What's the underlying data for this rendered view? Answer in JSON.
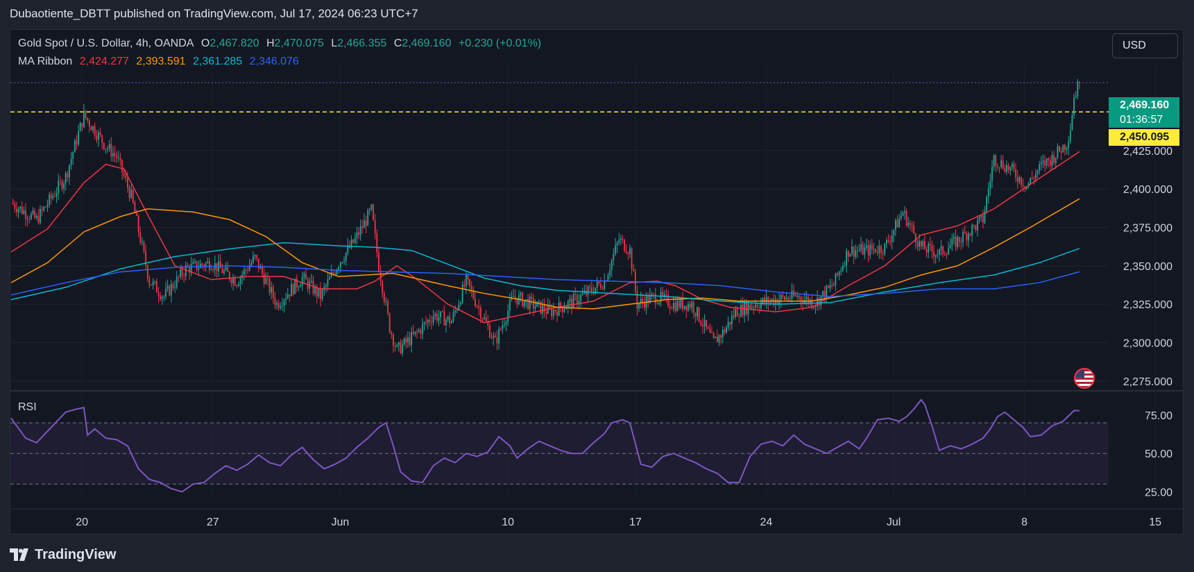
{
  "header": {
    "publish_text": "Dubaotiente_DBTT published on TradingView.com, Jul 17, 2024 06:23 UTC+7"
  },
  "legend": {
    "symbol": "Gold Spot / U.S. Dollar, 4h, OANDA",
    "o_label": "O",
    "o_value": "2,467.820",
    "h_label": "H",
    "h_value": "2,470.075",
    "l_label": "L",
    "l_value": "2,466.355",
    "c_label": "C",
    "c_value": "2,469.160",
    "change": "+0.230 (+0.01%)",
    "ma_label": "MA Ribbon",
    "ma_values": [
      "2,424.277",
      "2,393.591",
      "2,361.285",
      "2,346.076"
    ]
  },
  "currency_button": "USD",
  "price_tags": {
    "last_price": "2,469.160",
    "countdown": "01:36:57",
    "level": "2,450.095"
  },
  "rsi_label": "RSI",
  "footer_brand": "TradingView",
  "colors": {
    "up": "#26a69a",
    "down": "#f23645",
    "ma1": "#f23645",
    "ma2": "#ff9800",
    "ma3": "#00bcd4",
    "ma4": "#2962ff",
    "rsi": "#7e57c2",
    "level": "#ffeb3b"
  },
  "chart_data": [
    {
      "type": "candlestick",
      "title": "Gold Spot / U.S. Dollar, 4h, OANDA",
      "x_ticks": [
        "20",
        "27",
        "Jun",
        "10",
        "17",
        "24",
        "Jul",
        "8",
        "15"
      ],
      "y_ticks": [
        "2,275.000",
        "2,300.000",
        "2,325.000",
        "2,350.000",
        "2,375.000",
        "2,400.000",
        "2,425.000"
      ],
      "ylim": [
        2270,
        2480
      ],
      "horizontal_line": 2450.095,
      "last_price": 2469.16,
      "close_anchors": [
        [
          0,
          2391
        ],
        [
          14,
          2380
        ],
        [
          30,
          2408
        ],
        [
          40,
          2448
        ],
        [
          52,
          2428
        ],
        [
          58,
          2421
        ],
        [
          66,
          2395
        ],
        [
          76,
          2340
        ],
        [
          84,
          2330
        ],
        [
          96,
          2348
        ],
        [
          110,
          2352
        ],
        [
          124,
          2340
        ],
        [
          134,
          2355
        ],
        [
          146,
          2325
        ],
        [
          160,
          2342
        ],
        [
          170,
          2330
        ],
        [
          180,
          2352
        ],
        [
          188,
          2365
        ],
        [
          198,
          2386
        ],
        [
          202,
          2350
        ],
        [
          208,
          2310
        ],
        [
          212,
          2295
        ],
        [
          222,
          2305
        ],
        [
          232,
          2318
        ],
        [
          242,
          2314
        ],
        [
          250,
          2340
        ],
        [
          260,
          2315
        ],
        [
          266,
          2300
        ],
        [
          276,
          2330
        ],
        [
          286,
          2325
        ],
        [
          296,
          2320
        ],
        [
          306,
          2325
        ],
        [
          316,
          2332
        ],
        [
          326,
          2340
        ],
        [
          334,
          2367
        ],
        [
          340,
          2360
        ],
        [
          344,
          2325
        ],
        [
          354,
          2330
        ],
        [
          364,
          2325
        ],
        [
          374,
          2325
        ],
        [
          386,
          2300
        ],
        [
          392,
          2308
        ],
        [
          398,
          2320
        ],
        [
          408,
          2325
        ],
        [
          420,
          2328
        ],
        [
          432,
          2330
        ],
        [
          442,
          2326
        ],
        [
          452,
          2338
        ],
        [
          460,
          2360
        ],
        [
          470,
          2360
        ],
        [
          480,
          2362
        ],
        [
          490,
          2385
        ],
        [
          500,
          2362
        ],
        [
          510,
          2358
        ],
        [
          522,
          2368
        ],
        [
          534,
          2380
        ],
        [
          540,
          2420
        ],
        [
          550,
          2412
        ],
        [
          558,
          2402
        ],
        [
          566,
          2415
        ],
        [
          572,
          2420
        ],
        [
          580,
          2430
        ],
        [
          582,
          2440
        ],
        [
          584,
          2460
        ],
        [
          587,
          2469.16
        ]
      ],
      "ma_series": [
        {
          "name": "MA Ribbon",
          "values": [
            [
              0,
              2359
            ],
            [
              20,
              2374
            ],
            [
              40,
              2404
            ],
            [
              52,
              2416
            ],
            [
              62,
              2413
            ],
            [
              76,
              2381
            ],
            [
              90,
              2350
            ],
            [
              110,
              2341
            ],
            [
              130,
              2343
            ],
            [
              150,
              2343
            ],
            [
              170,
              2335
            ],
            [
              190,
              2335
            ],
            [
              200,
              2340
            ],
            [
              212,
              2350
            ],
            [
              222,
              2342
            ],
            [
              240,
              2325
            ],
            [
              260,
              2313
            ],
            [
              280,
              2318
            ],
            [
              300,
              2323
            ],
            [
              320,
              2327
            ],
            [
              340,
              2339
            ],
            [
              355,
              2340
            ],
            [
              365,
              2337
            ],
            [
              380,
              2328
            ],
            [
              395,
              2323
            ],
            [
              420,
              2320
            ],
            [
              440,
              2323
            ],
            [
              460,
              2337
            ],
            [
              480,
              2350
            ],
            [
              500,
              2370
            ],
            [
              520,
              2376
            ],
            [
              540,
              2387
            ],
            [
              560,
              2403
            ],
            [
              587,
              2424.277
            ]
          ]
        },
        {
          "name": "",
          "values": [
            [
              0,
              2339
            ],
            [
              20,
              2352
            ],
            [
              40,
              2372
            ],
            [
              60,
              2382
            ],
            [
              75,
              2387
            ],
            [
              100,
              2385
            ],
            [
              120,
              2380
            ],
            [
              140,
              2369
            ],
            [
              160,
              2352
            ],
            [
              180,
              2343
            ],
            [
              210,
              2345
            ],
            [
              240,
              2337
            ],
            [
              260,
              2332
            ],
            [
              280,
              2328
            ],
            [
              300,
              2323
            ],
            [
              320,
              2322
            ],
            [
              340,
              2325
            ],
            [
              360,
              2328
            ],
            [
              380,
              2329
            ],
            [
              400,
              2327
            ],
            [
              420,
              2327
            ],
            [
              440,
              2327
            ],
            [
              460,
              2331
            ],
            [
              480,
              2336
            ],
            [
              500,
              2344
            ],
            [
              520,
              2350
            ],
            [
              540,
              2362
            ],
            [
              560,
              2375
            ],
            [
              587,
              2393.591
            ]
          ]
        },
        {
          "name": "",
          "values": [
            [
              0,
              2328
            ],
            [
              30,
              2336
            ],
            [
              60,
              2348
            ],
            [
              90,
              2356
            ],
            [
              120,
              2361
            ],
            [
              150,
              2365
            ],
            [
              180,
              2363
            ],
            [
              200,
              2362
            ],
            [
              220,
              2360
            ],
            [
              240,
              2351
            ],
            [
              260,
              2342
            ],
            [
              280,
              2337
            ],
            [
              300,
              2334
            ],
            [
              330,
              2332
            ],
            [
              360,
              2330
            ],
            [
              390,
              2327
            ],
            [
              420,
              2325
            ],
            [
              450,
              2326
            ],
            [
              480,
              2333
            ],
            [
              510,
              2339
            ],
            [
              540,
              2344
            ],
            [
              565,
              2352
            ],
            [
              587,
              2361.285
            ]
          ]
        },
        {
          "name": "",
          "values": [
            [
              0,
              2331
            ],
            [
              30,
              2339
            ],
            [
              60,
              2346
            ],
            [
              90,
              2349
            ],
            [
              120,
              2350
            ],
            [
              150,
              2349
            ],
            [
              180,
              2347
            ],
            [
              210,
              2346
            ],
            [
              240,
              2345
            ],
            [
              270,
              2343
            ],
            [
              300,
              2341
            ],
            [
              330,
              2340
            ],
            [
              360,
              2339
            ],
            [
              390,
              2337
            ],
            [
              420,
              2333
            ],
            [
              450,
              2330
            ],
            [
              480,
              2332
            ],
            [
              510,
              2335
            ],
            [
              540,
              2335
            ],
            [
              565,
              2339
            ],
            [
              587,
              2346.076
            ]
          ]
        }
      ]
    },
    {
      "type": "line",
      "title": "RSI",
      "y_ticks": [
        "25.00",
        "50.00",
        "75.00"
      ],
      "ylim": [
        22,
        90
      ],
      "bands": [
        70,
        50,
        30
      ],
      "series": [
        {
          "name": "RSI",
          "values": [
            [
              0,
              73
            ],
            [
              8,
              60
            ],
            [
              14,
              57
            ],
            [
              22,
              67
            ],
            [
              30,
              77
            ],
            [
              36,
              79
            ],
            [
              40,
              80
            ],
            [
              42,
              62
            ],
            [
              46,
              66
            ],
            [
              52,
              60
            ],
            [
              58,
              59
            ],
            [
              64,
              55
            ],
            [
              70,
              40
            ],
            [
              76,
              33
            ],
            [
              82,
              31
            ],
            [
              88,
              27
            ],
            [
              94,
              25
            ],
            [
              100,
              30
            ],
            [
              106,
              31
            ],
            [
              112,
              37
            ],
            [
              118,
              42
            ],
            [
              124,
              39
            ],
            [
              130,
              43
            ],
            [
              136,
              49
            ],
            [
              142,
              44
            ],
            [
              148,
              42
            ],
            [
              154,
              49
            ],
            [
              160,
              54
            ],
            [
              166,
              46
            ],
            [
              172,
              40
            ],
            [
              178,
              43
            ],
            [
              184,
              47
            ],
            [
              190,
              54
            ],
            [
              196,
              60
            ],
            [
              202,
              67
            ],
            [
              206,
              70
            ],
            [
              210,
              55
            ],
            [
              214,
              38
            ],
            [
              220,
              32
            ],
            [
              226,
              31
            ],
            [
              232,
              42
            ],
            [
              238,
              47
            ],
            [
              244,
              44
            ],
            [
              250,
              50
            ],
            [
              256,
              48
            ],
            [
              262,
              51
            ],
            [
              268,
              61
            ],
            [
              274,
              55
            ],
            [
              278,
              47
            ],
            [
              284,
              53
            ],
            [
              290,
              58
            ],
            [
              296,
              55
            ],
            [
              302,
              52
            ],
            [
              308,
              50
            ],
            [
              314,
              50
            ],
            [
              320,
              57
            ],
            [
              326,
              63
            ],
            [
              330,
              70
            ],
            [
              336,
              72
            ],
            [
              340,
              70
            ],
            [
              346,
              43
            ],
            [
              352,
              41
            ],
            [
              358,
              48
            ],
            [
              364,
              50
            ],
            [
              370,
              47
            ],
            [
              376,
              44
            ],
            [
              382,
              40
            ],
            [
              388,
              37
            ],
            [
              394,
              31
            ],
            [
              400,
              31
            ],
            [
              406,
              48
            ],
            [
              412,
              56
            ],
            [
              418,
              58
            ],
            [
              424,
              55
            ],
            [
              430,
              62
            ],
            [
              436,
              56
            ],
            [
              442,
              53
            ],
            [
              448,
              50
            ],
            [
              454,
              54
            ],
            [
              460,
              58
            ],
            [
              466,
              53
            ],
            [
              470,
              60
            ],
            [
              476,
              72
            ],
            [
              482,
              73
            ],
            [
              488,
              71
            ],
            [
              492,
              74
            ],
            [
              496,
              79
            ],
            [
              500,
              85
            ],
            [
              502,
              82
            ],
            [
              506,
              68
            ],
            [
              510,
              52
            ],
            [
              516,
              55
            ],
            [
              522,
              53
            ],
            [
              528,
              56
            ],
            [
              534,
              60
            ],
            [
              538,
              66
            ],
            [
              542,
              74
            ],
            [
              546,
              77
            ],
            [
              550,
              73
            ],
            [
              556,
              67
            ],
            [
              560,
              61
            ],
            [
              566,
              62
            ],
            [
              572,
              68
            ],
            [
              578,
              71
            ],
            [
              584,
              78
            ],
            [
              587,
              78
            ]
          ]
        }
      ]
    }
  ]
}
